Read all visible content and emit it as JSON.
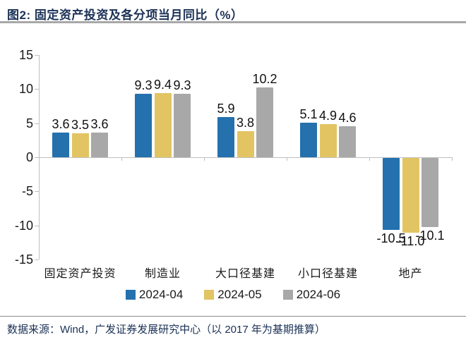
{
  "header": {
    "title": "图2:  固定资产投资及各分项当月同比（%）"
  },
  "chart_data": {
    "type": "bar",
    "title": "固定资产投资及各分项当月同比（%）",
    "categories": [
      "固定资产投资",
      "制造业",
      "大口径基建",
      "小口径基建",
      "地产"
    ],
    "series": [
      {
        "name": "2024-04",
        "color": "#2471ae",
        "values": [
          3.6,
          9.3,
          5.9,
          5.1,
          -10.5
        ]
      },
      {
        "name": "2024-05",
        "color": "#e2c463",
        "values": [
          3.5,
          9.4,
          3.8,
          4.9,
          -11.0
        ]
      },
      {
        "name": "2024-06",
        "color": "#a8a8a8",
        "values": [
          3.6,
          9.3,
          10.2,
          4.6,
          -10.1
        ]
      }
    ],
    "xlabel": "",
    "ylabel": "",
    "ylim": [
      -15,
      15
    ],
    "yticks": [
      15,
      10,
      5,
      0,
      -5,
      -10,
      -15
    ],
    "grid": false,
    "legend_position": "bottom",
    "value_labels": true,
    "axis_color": "#bfbfbf",
    "label_color": "#111111"
  },
  "footer": {
    "text": "数据来源：Wind，广发证券发展研究中心（以 2017 年为基期推算）"
  }
}
